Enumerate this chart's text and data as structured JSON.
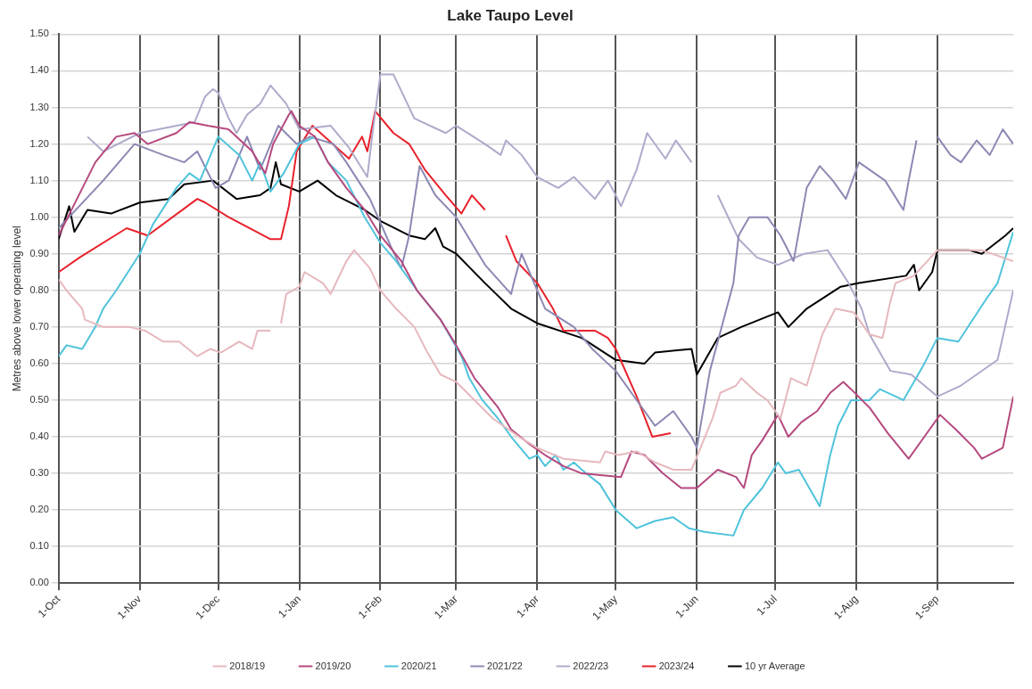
{
  "chart_data": {
    "type": "line",
    "title": "Lake Taupo Level",
    "ylabel": "Metres above lower operating level",
    "xlim": [
      "2023-10-01",
      "2024-09-30"
    ],
    "xticks": [
      {
        "value": "2023-10-01",
        "label": "1-Oct"
      },
      {
        "value": "2023-11-01",
        "label": "1-Nov"
      },
      {
        "value": "2023-12-01",
        "label": "1-Dec"
      },
      {
        "value": "2024-01-01",
        "label": "1-Jan"
      },
      {
        "value": "2024-02-01",
        "label": "1-Feb"
      },
      {
        "value": "2024-03-01",
        "label": "1-Mar"
      },
      {
        "value": "2024-04-01",
        "label": "1-Apr"
      },
      {
        "value": "2024-05-01",
        "label": "1-May"
      },
      {
        "value": "2024-06-01",
        "label": "1-Jun"
      },
      {
        "value": "2024-07-01",
        "label": "1-Jul"
      },
      {
        "value": "2024-08-01",
        "label": "1-Aug"
      },
      {
        "value": "2024-09-01",
        "label": "1-Sep"
      }
    ],
    "ylim": [
      0,
      1.5
    ],
    "yticks": [
      {
        "value": 0,
        "label": "0.00"
      },
      {
        "value": 0.1,
        "label": "0.10"
      },
      {
        "value": 0.2,
        "label": "0.20"
      },
      {
        "value": 0.3,
        "label": "0.30"
      },
      {
        "value": 0.4,
        "label": "0.40"
      },
      {
        "value": 0.5,
        "label": "0.50"
      },
      {
        "value": 0.6,
        "label": "0.60"
      },
      {
        "value": 0.7,
        "label": "0.70"
      },
      {
        "value": 0.8,
        "label": "0.80"
      },
      {
        "value": 0.9,
        "label": "0.90"
      },
      {
        "value": 1.0,
        "label": "1.00"
      },
      {
        "value": 1.1,
        "label": "1.10"
      },
      {
        "value": 1.2,
        "label": "1.20"
      },
      {
        "value": 1.3,
        "label": "1.30"
      },
      {
        "value": 1.4,
        "label": "1.40"
      },
      {
        "value": 1.5,
        "label": "1.50"
      }
    ],
    "grid": true,
    "legend": "bottom",
    "marker": "none",
    "line_style": "solid",
    "series": [
      {
        "name": "2018/19",
        "color": "#e6b8bd",
        "x": [
          "2023-10-01",
          "2023-10-04",
          "2023-10-10",
          "2023-10-11",
          "2023-10-18",
          "2023-10-28",
          "2023-11-03",
          "2023-11-10",
          "2023-11-16",
          "2023-11-23",
          "2023-11-28",
          "2023-12-02",
          "2023-12-09",
          "2023-12-14",
          "2023-12-16",
          "2023-12-21",
          "2023-12-23",
          "2023-12-25",
          "2023-12-27",
          "2024-01-01",
          "2024-01-03",
          "2024-01-10",
          "2024-01-13",
          "2024-01-19",
          "2024-01-22",
          "2024-01-28",
          "2024-02-01",
          "2024-02-07",
          "2024-02-14",
          "2024-02-19",
          "2024-02-24",
          "2024-03-01",
          "2024-03-08",
          "2024-03-15",
          "2024-03-25",
          "2024-04-01",
          "2024-04-11",
          "2024-04-25",
          "2024-04-27",
          "2024-05-02",
          "2024-05-09",
          "2024-05-16",
          "2024-05-23",
          "2024-05-30",
          "2024-06-07",
          "2024-06-10",
          "2024-06-16",
          "2024-06-18",
          "2024-06-24",
          "2024-06-28",
          "2024-07-03",
          "2024-07-07",
          "2024-07-13",
          "2024-07-19",
          "2024-07-24",
          "2024-07-31",
          "2024-08-06",
          "2024-08-11",
          "2024-08-14",
          "2024-08-16",
          "2024-08-23",
          "2024-09-01",
          "2024-09-18",
          "2024-09-30"
        ],
        "values": [
          0.83,
          0.8,
          0.75,
          0.72,
          0.7,
          0.7,
          0.69,
          0.66,
          0.66,
          0.62,
          0.64,
          0.63,
          0.66,
          0.64,
          0.69,
          0.69,
          null,
          0.71,
          0.79,
          0.81,
          0.85,
          0.82,
          0.79,
          0.88,
          0.91,
          0.86,
          0.8,
          0.75,
          0.7,
          0.63,
          0.57,
          0.55,
          0.5,
          0.45,
          0.4,
          0.37,
          0.34,
          0.33,
          0.36,
          0.35,
          0.36,
          0.33,
          0.31,
          0.31,
          0.45,
          0.52,
          0.54,
          0.56,
          0.52,
          0.5,
          0.45,
          0.56,
          0.54,
          0.68,
          0.75,
          0.74,
          0.68,
          0.67,
          0.77,
          0.82,
          0.84,
          0.91,
          0.91,
          0.88
        ]
      },
      {
        "name": "2019/20",
        "color": "#b5497e",
        "x": [
          "2023-10-01",
          "2023-10-08",
          "2023-10-15",
          "2023-10-23",
          "2023-10-30",
          "2023-11-04",
          "2023-11-15",
          "2023-11-20",
          "2023-11-27",
          "2023-12-05",
          "2023-12-14",
          "2023-12-19",
          "2023-12-22",
          "2023-12-28",
          "2023-12-29",
          "2024-01-01",
          "2024-01-07",
          "2024-01-12",
          "2024-01-19",
          "2024-01-26",
          "2024-02-01",
          "2024-02-09",
          "2024-02-15",
          "2024-02-24",
          "2024-03-01",
          "2024-03-08",
          "2024-03-17",
          "2024-03-22",
          "2024-03-29",
          "2024-04-04",
          "2024-04-11",
          "2024-04-18",
          "2024-05-03",
          "2024-05-07",
          "2024-05-12",
          "2024-05-19",
          "2024-05-26",
          "2024-06-01",
          "2024-06-09",
          "2024-06-16",
          "2024-06-19",
          "2024-06-22",
          "2024-06-26",
          "2024-07-02",
          "2024-07-06",
          "2024-07-11",
          "2024-07-17",
          "2024-07-22",
          "2024-07-27",
          "2024-07-30",
          "2024-08-06",
          "2024-08-13",
          "2024-08-21",
          "2024-08-27",
          "2024-09-02",
          "2024-09-08",
          "2024-09-15",
          "2024-09-18",
          "2024-09-26",
          "2024-09-30"
        ],
        "values": [
          0.95,
          1.05,
          1.15,
          1.22,
          1.23,
          1.2,
          1.23,
          1.26,
          1.25,
          1.24,
          1.18,
          1.12,
          1.2,
          1.28,
          1.29,
          1.25,
          1.22,
          1.15,
          1.08,
          1.02,
          0.95,
          0.88,
          0.8,
          0.72,
          0.65,
          0.56,
          0.48,
          0.42,
          0.38,
          0.35,
          0.32,
          0.3,
          0.29,
          0.36,
          0.35,
          0.3,
          0.26,
          0.26,
          0.31,
          0.29,
          0.26,
          0.35,
          0.39,
          0.46,
          0.4,
          0.44,
          0.47,
          0.52,
          0.55,
          0.53,
          0.48,
          0.41,
          0.34,
          0.4,
          0.46,
          0.42,
          0.37,
          0.34,
          0.37,
          0.51
        ]
      },
      {
        "name": "2020/21",
        "color": "#4fc3db",
        "x": [
          "2023-10-01",
          "2023-10-04",
          "2023-10-10",
          "2023-10-15",
          "2023-10-18",
          "2023-10-23",
          "2023-11-01",
          "2023-11-06",
          "2023-11-15",
          "2023-11-20",
          "2023-11-24",
          "2023-12-01",
          "2023-12-09",
          "2023-12-14",
          "2023-12-17",
          "2023-12-21",
          "2023-12-26",
          "2024-01-01",
          "2024-01-07",
          "2024-01-12",
          "2024-01-19",
          "2024-01-26",
          "2024-02-01",
          "2024-02-07",
          "2024-02-15",
          "2024-02-24",
          "2024-03-03",
          "2024-03-06",
          "2024-03-11",
          "2024-03-17",
          "2024-03-22",
          "2024-03-29",
          "2024-04-01",
          "2024-04-04",
          "2024-04-08",
          "2024-04-11",
          "2024-04-15",
          "2024-04-18",
          "2024-04-25",
          "2024-05-01",
          "2024-05-09",
          "2024-05-16",
          "2024-05-23",
          "2024-05-29",
          "2024-06-04",
          "2024-06-15",
          "2024-06-19",
          "2024-06-26",
          "2024-07-02",
          "2024-07-05",
          "2024-07-10",
          "2024-07-18",
          "2024-07-22",
          "2024-07-25",
          "2024-07-30",
          "2024-08-06",
          "2024-08-10",
          "2024-08-19",
          "2024-08-27",
          "2024-09-01",
          "2024-09-09",
          "2024-09-20",
          "2024-09-24",
          "2024-09-30"
        ],
        "values": [
          0.62,
          0.65,
          0.64,
          0.7,
          0.75,
          0.8,
          0.9,
          0.98,
          1.08,
          1.12,
          1.1,
          1.22,
          1.17,
          1.1,
          1.15,
          1.07,
          1.12,
          1.2,
          1.22,
          1.15,
          1.1,
          1.0,
          0.93,
          0.88,
          0.8,
          0.72,
          0.62,
          0.56,
          0.5,
          0.45,
          0.4,
          0.34,
          0.35,
          0.32,
          0.35,
          0.31,
          0.33,
          0.31,
          0.27,
          0.2,
          0.15,
          0.17,
          0.18,
          0.15,
          0.14,
          0.13,
          0.2,
          0.26,
          0.33,
          0.3,
          0.31,
          0.21,
          0.35,
          0.43,
          0.5,
          0.5,
          0.53,
          0.5,
          0.6,
          0.67,
          0.66,
          0.78,
          0.82,
          0.96
        ]
      },
      {
        "name": "2021/22",
        "color": "#8c89b3",
        "x": [
          "2023-10-01",
          "2023-10-18",
          "2023-10-30",
          "2023-11-10",
          "2023-11-18",
          "2023-11-23",
          "2023-11-30",
          "2023-12-05",
          "2023-12-12",
          "2023-12-17",
          "2023-12-24",
          "2023-12-31",
          "2024-01-05",
          "2024-01-14",
          "2024-01-19",
          "2024-01-28",
          "2024-02-05",
          "2024-02-09",
          "2024-02-12",
          "2024-02-16",
          "2024-02-22",
          "2024-03-01",
          "2024-03-12",
          "2024-03-22",
          "2024-03-23",
          "2024-03-26",
          "2024-04-04",
          "2024-04-15",
          "2024-04-22",
          "2024-05-01",
          "2024-05-09",
          "2024-05-16",
          "2024-05-23",
          "2024-05-30",
          "2024-06-01",
          "2024-06-06",
          "2024-06-15",
          "2024-06-17",
          "2024-06-21",
          "2024-06-28",
          "2024-07-03",
          "2024-07-08",
          "2024-07-13",
          "2024-07-18",
          "2024-07-23",
          "2024-07-28",
          "2024-08-02",
          "2024-08-12",
          "2024-08-19",
          "2024-08-21",
          "2024-08-24",
          "2024-08-28",
          "2024-09-01",
          "2024-09-06",
          "2024-09-10",
          "2024-09-16",
          "2024-09-21",
          "2024-09-26",
          "2024-09-30"
        ],
        "values": [
          0.97,
          1.1,
          1.2,
          1.17,
          1.15,
          1.18,
          1.08,
          1.1,
          1.22,
          1.13,
          1.25,
          1.2,
          1.22,
          1.2,
          1.15,
          1.05,
          0.92,
          0.86,
          0.95,
          1.14,
          1.06,
          1.0,
          0.87,
          0.79,
          0.82,
          0.9,
          0.75,
          0.7,
          0.64,
          0.58,
          0.5,
          0.43,
          0.47,
          0.4,
          0.37,
          0.58,
          0.82,
          0.95,
          1.0,
          1.0,
          0.95,
          0.88,
          1.08,
          1.14,
          1.1,
          1.05,
          1.15,
          1.1,
          1.02,
          1.1,
          1.21,
          null,
          1.22,
          1.17,
          1.15,
          1.21,
          1.17,
          1.24,
          1.2
        ]
      },
      {
        "name": "2022/23",
        "color": "#aeaacb",
        "x": [
          "2023-10-12",
          "2023-10-18",
          "2023-11-01",
          "2023-11-22",
          "2023-11-26",
          "2023-11-29",
          "2023-12-01",
          "2023-12-05",
          "2023-12-08",
          "2023-12-12",
          "2023-12-17",
          "2023-12-21",
          "2023-12-27",
          "2024-01-01",
          "2024-01-13",
          "2024-01-20",
          "2024-01-27",
          "2024-01-29",
          "2024-02-01",
          "2024-02-06",
          "2024-02-14",
          "2024-02-26",
          "2024-03-01",
          "2024-03-12",
          "2024-03-18",
          "2024-03-20",
          "2024-03-26",
          "2024-04-01",
          "2024-04-09",
          "2024-04-15",
          "2024-04-23",
          "2024-04-28",
          "2024-05-01",
          "2024-05-03",
          "2024-05-09",
          "2024-05-13",
          "2024-05-20",
          "2024-05-24",
          "2024-05-30",
          "2024-06-04",
          "2024-06-09",
          "2024-06-17",
          "2024-06-24",
          "2024-07-02",
          "2024-07-12",
          "2024-07-21",
          "2024-07-29",
          "2024-08-03",
          "2024-08-06",
          "2024-08-14",
          "2024-08-22",
          "2024-09-01",
          "2024-09-10",
          "2024-09-24",
          "2024-09-30"
        ],
        "values": [
          1.22,
          1.18,
          1.23,
          1.26,
          1.33,
          1.35,
          1.34,
          1.27,
          1.23,
          1.28,
          1.31,
          1.36,
          1.31,
          1.24,
          1.25,
          1.19,
          1.11,
          1.23,
          1.39,
          1.39,
          1.27,
          1.23,
          1.25,
          1.2,
          1.17,
          1.21,
          1.17,
          1.11,
          1.08,
          1.11,
          1.05,
          1.1,
          1.06,
          1.03,
          1.13,
          1.23,
          1.16,
          1.21,
          1.15,
          null,
          1.06,
          0.94,
          0.89,
          0.87,
          0.9,
          0.91,
          0.82,
          0.75,
          0.68,
          0.58,
          0.57,
          0.51,
          0.54,
          0.61,
          0.8
        ]
      },
      {
        "name": "2023/24",
        "color": "#e8212c",
        "x": [
          "2023-10-01",
          "2023-10-09",
          "2023-10-27",
          "2023-11-04",
          "2023-11-23",
          "2023-11-26",
          "2023-12-05",
          "2023-12-21",
          "2023-12-25",
          "2023-12-28",
          "2023-12-31",
          "2024-01-06",
          "2024-01-20",
          "2024-01-25",
          "2024-01-27",
          "2024-01-30",
          "2024-02-06",
          "2024-02-12",
          "2024-02-18",
          "2024-02-26",
          "2024-03-03",
          "2024-03-07",
          "2024-03-12",
          "2024-03-16",
          "2024-03-20",
          "2024-03-24",
          "2024-04-01",
          "2024-04-07",
          "2024-04-11",
          "2024-04-23",
          "2024-04-28",
          "2024-05-01",
          "2024-05-09",
          "2024-05-15",
          "2024-05-22"
        ],
        "values": [
          0.85,
          0.89,
          0.97,
          0.95,
          1.05,
          1.04,
          1.0,
          0.94,
          0.94,
          1.03,
          1.18,
          1.25,
          1.16,
          1.22,
          1.18,
          1.29,
          1.23,
          1.2,
          1.13,
          1.06,
          1.01,
          1.06,
          1.02,
          null,
          0.95,
          0.88,
          0.82,
          0.75,
          0.69,
          0.69,
          0.67,
          0.64,
          0.51,
          0.4,
          0.41
        ]
      },
      {
        "name": "10 yr Average",
        "color": "#000000",
        "x": [
          "2023-10-01",
          "2023-10-05",
          "2023-10-07",
          "2023-10-12",
          "2023-10-21",
          "2023-11-01",
          "2023-11-12",
          "2023-11-18",
          "2023-11-29",
          "2023-12-08",
          "2023-12-17",
          "2023-12-21",
          "2023-12-23",
          "2023-12-25",
          "2024-01-01",
          "2024-01-08",
          "2024-01-15",
          "2024-01-26",
          "2024-02-01",
          "2024-02-12",
          "2024-02-18",
          "2024-02-22",
          "2024-02-25",
          "2024-03-01",
          "2024-03-12",
          "2024-03-22",
          "2024-04-01",
          "2024-04-18",
          "2024-05-01",
          "2024-05-12",
          "2024-05-16",
          "2024-05-30",
          "2024-06-01",
          "2024-06-09",
          "2024-06-18",
          "2024-07-02",
          "2024-07-06",
          "2024-07-13",
          "2024-07-26",
          "2024-08-02",
          "2024-08-20",
          "2024-08-23",
          "2024-08-25",
          "2024-08-30",
          "2024-09-01",
          "2024-09-13",
          "2024-09-18",
          "2024-09-27",
          "2024-09-30"
        ],
        "values": [
          0.94,
          1.03,
          0.96,
          1.02,
          1.01,
          1.04,
          1.05,
          1.09,
          1.1,
          1.05,
          1.06,
          1.08,
          1.15,
          1.09,
          1.07,
          1.1,
          1.06,
          1.02,
          0.99,
          0.95,
          0.94,
          0.97,
          0.92,
          0.9,
          0.82,
          0.75,
          0.71,
          0.67,
          0.61,
          0.6,
          0.63,
          0.64,
          0.57,
          0.67,
          0.7,
          0.74,
          0.7,
          0.75,
          0.81,
          0.82,
          0.84,
          0.87,
          0.8,
          0.85,
          0.91,
          0.91,
          0.9,
          0.95,
          0.97
        ]
      }
    ]
  }
}
